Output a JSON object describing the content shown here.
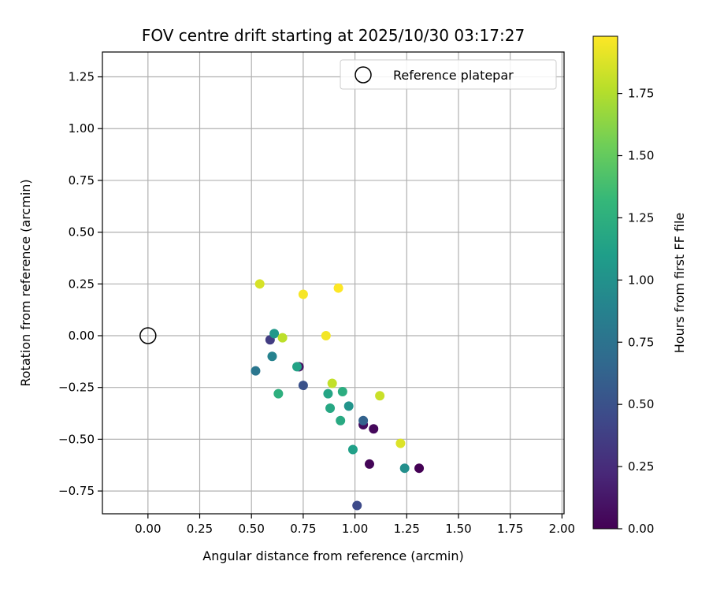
{
  "chart_data": {
    "type": "scatter",
    "title": "FOV centre drift starting at 2025/10/30 03:17:27",
    "xlabel": "Angular distance from reference (arcmin)",
    "ylabel": "Rotation from reference (arcmin)",
    "xlim": [
      -0.22,
      2.01
    ],
    "ylim": [
      -0.86,
      1.37
    ],
    "xticks": [
      0.0,
      0.25,
      0.5,
      0.75,
      1.0,
      1.25,
      1.5,
      1.75,
      2.0
    ],
    "xtick_labels": [
      "0.00",
      "0.25",
      "0.50",
      "0.75",
      "1.00",
      "1.25",
      "1.50",
      "1.75",
      "2.00"
    ],
    "yticks": [
      -0.75,
      -0.5,
      -0.25,
      0.0,
      0.25,
      0.5,
      0.75,
      1.0,
      1.25
    ],
    "ytick_labels": [
      "−0.75",
      "−0.50",
      "−0.25",
      "0.00",
      "0.25",
      "0.50",
      "0.75",
      "1.00",
      "1.25"
    ],
    "grid": true,
    "legend": {
      "placement": "upper-right",
      "entries": [
        "Reference platepar"
      ]
    },
    "reference_point": {
      "x": 0.0,
      "y": 0.0,
      "label": "Reference platepar"
    },
    "colorbar": {
      "label": "Hours from first FF file",
      "range": [
        0.0,
        1.98
      ],
      "ticks": [
        0.0,
        0.25,
        0.5,
        0.75,
        1.0,
        1.25,
        1.5,
        1.75
      ],
      "tick_labels": [
        "0.00",
        "0.25",
        "0.50",
        "0.75",
        "1.00",
        "1.25",
        "1.50",
        "1.75"
      ],
      "colormap": [
        "#440154",
        "#482878",
        "#3e4989",
        "#31688e",
        "#26828e",
        "#1f9e89",
        "#35b779",
        "#6ece58",
        "#b5de2b",
        "#fde725"
      ]
    },
    "points": [
      {
        "x": 1.31,
        "y": -0.64,
        "hours": 0.0
      },
      {
        "x": 1.07,
        "y": -0.62,
        "hours": 0.02
      },
      {
        "x": 1.09,
        "y": -0.45,
        "hours": 0.04
      },
      {
        "x": 1.04,
        "y": -0.43,
        "hours": 0.06
      },
      {
        "x": 0.73,
        "y": -0.15,
        "hours": 0.1
      },
      {
        "x": 0.59,
        "y": -0.02,
        "hours": 0.35
      },
      {
        "x": 1.01,
        "y": -0.82,
        "hours": 0.45
      },
      {
        "x": 0.75,
        "y": -0.24,
        "hours": 0.5
      },
      {
        "x": 1.04,
        "y": -0.41,
        "hours": 0.62
      },
      {
        "x": 0.52,
        "y": -0.17,
        "hours": 0.78
      },
      {
        "x": 0.6,
        "y": -0.1,
        "hours": 0.88
      },
      {
        "x": 1.24,
        "y": -0.64,
        "hours": 0.98
      },
      {
        "x": 0.97,
        "y": -0.34,
        "hours": 1.02
      },
      {
        "x": 0.61,
        "y": 0.01,
        "hours": 1.05
      },
      {
        "x": 0.99,
        "y": -0.55,
        "hours": 1.12
      },
      {
        "x": 0.72,
        "y": -0.15,
        "hours": 1.14
      },
      {
        "x": 0.87,
        "y": -0.28,
        "hours": 1.16
      },
      {
        "x": 0.88,
        "y": -0.35,
        "hours": 1.18
      },
      {
        "x": 0.93,
        "y": -0.41,
        "hours": 1.2
      },
      {
        "x": 0.94,
        "y": -0.27,
        "hours": 1.23
      },
      {
        "x": 0.63,
        "y": -0.28,
        "hours": 1.25
      },
      {
        "x": 0.65,
        "y": -0.01,
        "hours": 1.78
      },
      {
        "x": 0.89,
        "y": -0.23,
        "hours": 1.8
      },
      {
        "x": 1.12,
        "y": -0.29,
        "hours": 1.82
      },
      {
        "x": 0.54,
        "y": 0.25,
        "hours": 1.86
      },
      {
        "x": 1.22,
        "y": -0.52,
        "hours": 1.88
      },
      {
        "x": 0.86,
        "y": 0.0,
        "hours": 1.95
      },
      {
        "x": 0.75,
        "y": 0.2,
        "hours": 1.96
      },
      {
        "x": 0.92,
        "y": 0.23,
        "hours": 1.98
      }
    ]
  }
}
